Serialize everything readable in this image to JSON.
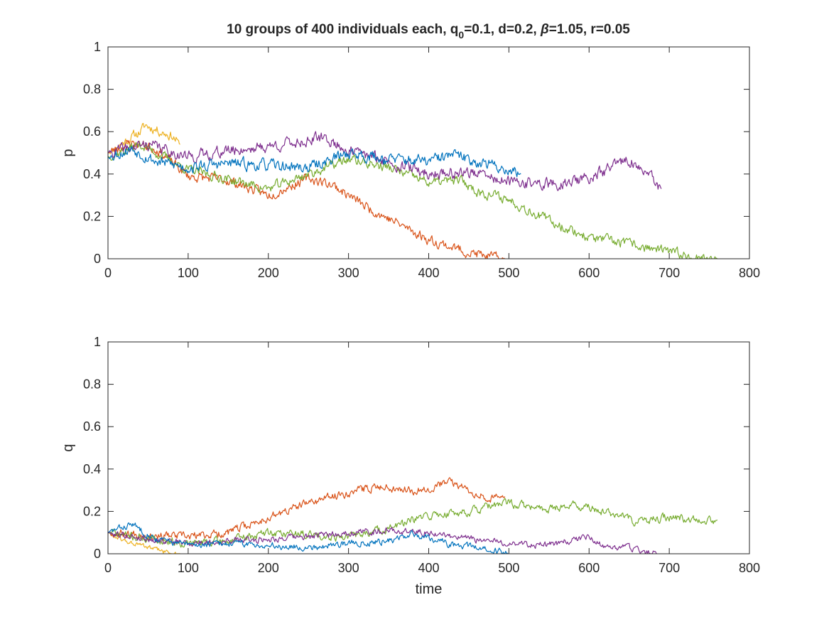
{
  "chart_data": [
    {
      "type": "line",
      "title": {
        "pre": "10 groups of 400 individuals each, q",
        "sub": "0",
        "mid": "=0.1, d=0.2, ",
        "beta": "β",
        "post": "=1.05, r=0.05"
      },
      "xlabel": "",
      "ylabel": "p",
      "xlim": [
        0,
        800
      ],
      "ylim": [
        0,
        1
      ],
      "xticks": [
        0,
        100,
        200,
        300,
        400,
        500,
        600,
        700,
        800
      ],
      "yticks": [
        0,
        0.2,
        0.4,
        0.6,
        0.8,
        1
      ],
      "xtick_labels": [
        "0",
        "100",
        "200",
        "300",
        "400",
        "500",
        "600",
        "700",
        "800"
      ],
      "ytick_labels": [
        "0",
        "0.2",
        "0.4",
        "0.6",
        "0.8",
        "1"
      ],
      "grid": false,
      "series": [
        {
          "color": "#EDB120",
          "x": [
            0,
            20,
            40,
            47,
            60,
            80,
            90
          ],
          "values": [
            0.5,
            0.55,
            0.6,
            0.63,
            0.61,
            0.58,
            0.54
          ],
          "noise": 0.012,
          "seed": 11
        },
        {
          "color": "#D95319",
          "x": [
            0,
            30,
            60,
            100,
            150,
            200,
            250,
            280,
            320,
            360,
            400,
            450,
            480,
            495
          ],
          "values": [
            0.5,
            0.55,
            0.52,
            0.39,
            0.37,
            0.3,
            0.38,
            0.35,
            0.25,
            0.17,
            0.09,
            0.03,
            0.005,
            0.0
          ],
          "noise": 0.012,
          "seed": 23
        },
        {
          "color": "#77AC30",
          "x": [
            0,
            40,
            100,
            200,
            300,
            350,
            400,
            440,
            460,
            500,
            550,
            600,
            650,
            700,
            740,
            760
          ],
          "values": [
            0.48,
            0.54,
            0.42,
            0.33,
            0.47,
            0.43,
            0.36,
            0.37,
            0.32,
            0.28,
            0.18,
            0.1,
            0.07,
            0.03,
            0.005,
            0.0
          ],
          "noise": 0.012,
          "seed": 37
        },
        {
          "color": "#7E2F8E",
          "x": [
            0,
            50,
            100,
            150,
            200,
            270,
            300,
            350,
            400,
            450,
            500,
            560,
            600,
            650,
            680,
            690
          ],
          "values": [
            0.5,
            0.54,
            0.48,
            0.51,
            0.53,
            0.57,
            0.51,
            0.46,
            0.4,
            0.41,
            0.36,
            0.35,
            0.38,
            0.47,
            0.37,
            0.33
          ],
          "noise": 0.014,
          "seed": 41
        },
        {
          "color": "#0072BD",
          "x": [
            0,
            30,
            60,
            100,
            150,
            200,
            250,
            300,
            350,
            400,
            430,
            460,
            500,
            515
          ],
          "values": [
            0.48,
            0.52,
            0.46,
            0.43,
            0.45,
            0.44,
            0.43,
            0.5,
            0.47,
            0.46,
            0.49,
            0.46,
            0.42,
            0.4
          ],
          "noise": 0.014,
          "seed": 53
        }
      ]
    },
    {
      "type": "line",
      "xlabel": "time",
      "ylabel": "q",
      "xlim": [
        0,
        800
      ],
      "ylim": [
        0,
        1
      ],
      "xticks": [
        0,
        100,
        200,
        300,
        400,
        500,
        600,
        700,
        800
      ],
      "yticks": [
        0,
        0.2,
        0.4,
        0.6,
        0.8,
        1
      ],
      "xtick_labels": [
        "0",
        "100",
        "200",
        "300",
        "400",
        "500",
        "600",
        "700",
        "800"
      ],
      "ytick_labels": [
        "0",
        "0.2",
        "0.4",
        "0.6",
        "0.8",
        "1"
      ],
      "grid": false,
      "series": [
        {
          "color": "#EDB120",
          "x": [
            0,
            20,
            50,
            75,
            90
          ],
          "values": [
            0.1,
            0.06,
            0.03,
            0.005,
            0.0
          ],
          "noise": 0.006,
          "seed": 61
        },
        {
          "color": "#D95319",
          "x": [
            0,
            50,
            100,
            150,
            200,
            250,
            300,
            340,
            380,
            400,
            425,
            450,
            480,
            495
          ],
          "values": [
            0.1,
            0.09,
            0.08,
            0.1,
            0.17,
            0.24,
            0.29,
            0.32,
            0.3,
            0.31,
            0.34,
            0.3,
            0.26,
            0.27
          ],
          "noise": 0.01,
          "seed": 67
        },
        {
          "color": "#77AC30",
          "x": [
            0,
            50,
            100,
            150,
            200,
            250,
            300,
            350,
            400,
            450,
            500,
            540,
            580,
            620,
            660,
            700,
            760
          ],
          "values": [
            0.1,
            0.07,
            0.05,
            0.06,
            0.1,
            0.09,
            0.08,
            0.12,
            0.18,
            0.2,
            0.24,
            0.21,
            0.23,
            0.2,
            0.15,
            0.17,
            0.16
          ],
          "noise": 0.01,
          "seed": 71
        },
        {
          "color": "#7E2F8E",
          "x": [
            0,
            50,
            100,
            150,
            200,
            250,
            300,
            350,
            400,
            450,
            500,
            550,
            600,
            620,
            650,
            685
          ],
          "values": [
            0.1,
            0.07,
            0.05,
            0.06,
            0.07,
            0.08,
            0.1,
            0.11,
            0.1,
            0.07,
            0.05,
            0.04,
            0.08,
            0.03,
            0.03,
            0.0
          ],
          "noise": 0.008,
          "seed": 79
        },
        {
          "color": "#0072BD",
          "x": [
            0,
            30,
            60,
            100,
            150,
            200,
            250,
            300,
            350,
            380,
            400,
            430,
            460,
            500
          ],
          "values": [
            0.1,
            0.14,
            0.07,
            0.04,
            0.05,
            0.04,
            0.03,
            0.05,
            0.06,
            0.09,
            0.08,
            0.04,
            0.03,
            0.0
          ],
          "noise": 0.008,
          "seed": 83
        }
      ]
    }
  ]
}
